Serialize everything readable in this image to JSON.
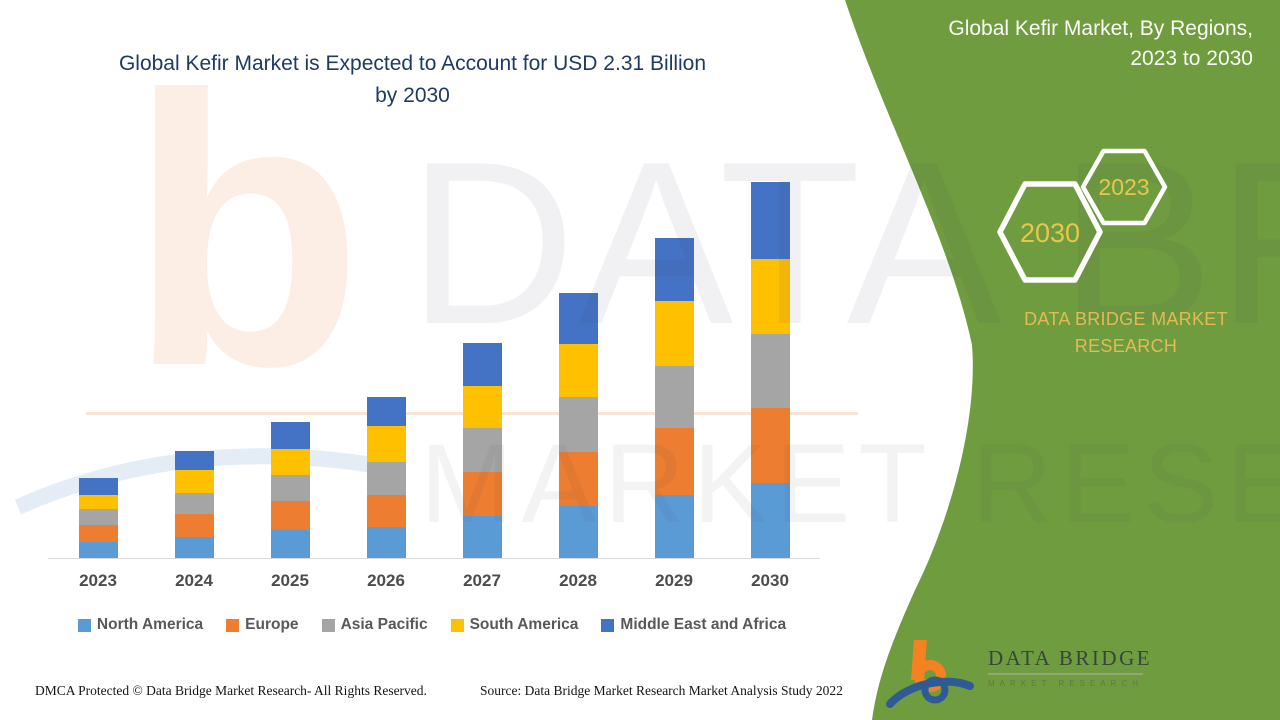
{
  "header": {
    "title_line1": "Global Kefir Market is Expected to Account for USD 2.31 Billion",
    "title_line2": "by 2030"
  },
  "right_panel": {
    "panel_color": "#6F9C3E",
    "title_line1": "Global Kefir Market, By Regions,",
    "title_line2": "2023 to 2030",
    "hexagon_back_year": "2023",
    "hexagon_front_year": "2030",
    "hexagon_text_color": "#E8C64B",
    "brand_line1": "DATA BRIDGE MARKET",
    "brand_line2": "RESEARCH",
    "logo_name": "DATA BRIDGE",
    "logo_subtitle": "MARKET RESEARCH"
  },
  "watermark": {
    "line1": "DATA BRIDGE",
    "line2": "MARKET RESEARCH",
    "letter": "b"
  },
  "footer": {
    "dmca_text": "DMCA Protected © Data Bridge Market Research- All Rights Reserved.",
    "source_text": "Source: Data Bridge Market Research Market Analysis Study 2022"
  },
  "chart_data": {
    "type": "bar",
    "stacked": true,
    "title": "Global Kefir Market is Expected to Account for USD 2.31 Billion by 2030",
    "unit": "USD Billion",
    "xlabel": "",
    "ylabel": "",
    "grid": false,
    "y_axis_visible": false,
    "legend_position": "bottom",
    "categories": [
      "2023",
      "2024",
      "2025",
      "2026",
      "2027",
      "2028",
      "2029",
      "2030"
    ],
    "series": [
      {
        "name": "North America",
        "color": "#5B9BD5",
        "values": [
          0.1,
          0.13,
          0.17,
          0.19,
          0.26,
          0.32,
          0.39,
          0.46
        ]
      },
      {
        "name": "Europe",
        "color": "#ED7D31",
        "values": [
          0.1,
          0.14,
          0.18,
          0.2,
          0.27,
          0.33,
          0.41,
          0.46
        ]
      },
      {
        "name": "Asia Pacific",
        "color": "#A5A5A5",
        "values": [
          0.1,
          0.13,
          0.16,
          0.2,
          0.27,
          0.34,
          0.38,
          0.46
        ]
      },
      {
        "name": "South America",
        "color": "#FFC000",
        "values": [
          0.09,
          0.14,
          0.16,
          0.22,
          0.26,
          0.33,
          0.4,
          0.46
        ]
      },
      {
        "name": "Middle East and Africa",
        "color": "#4472C4",
        "values": [
          0.1,
          0.12,
          0.17,
          0.18,
          0.26,
          0.31,
          0.39,
          0.47
        ]
      }
    ],
    "totals_by_year": [
      0.49,
      0.66,
      0.84,
      0.99,
      1.32,
      1.63,
      1.97,
      2.31
    ]
  }
}
